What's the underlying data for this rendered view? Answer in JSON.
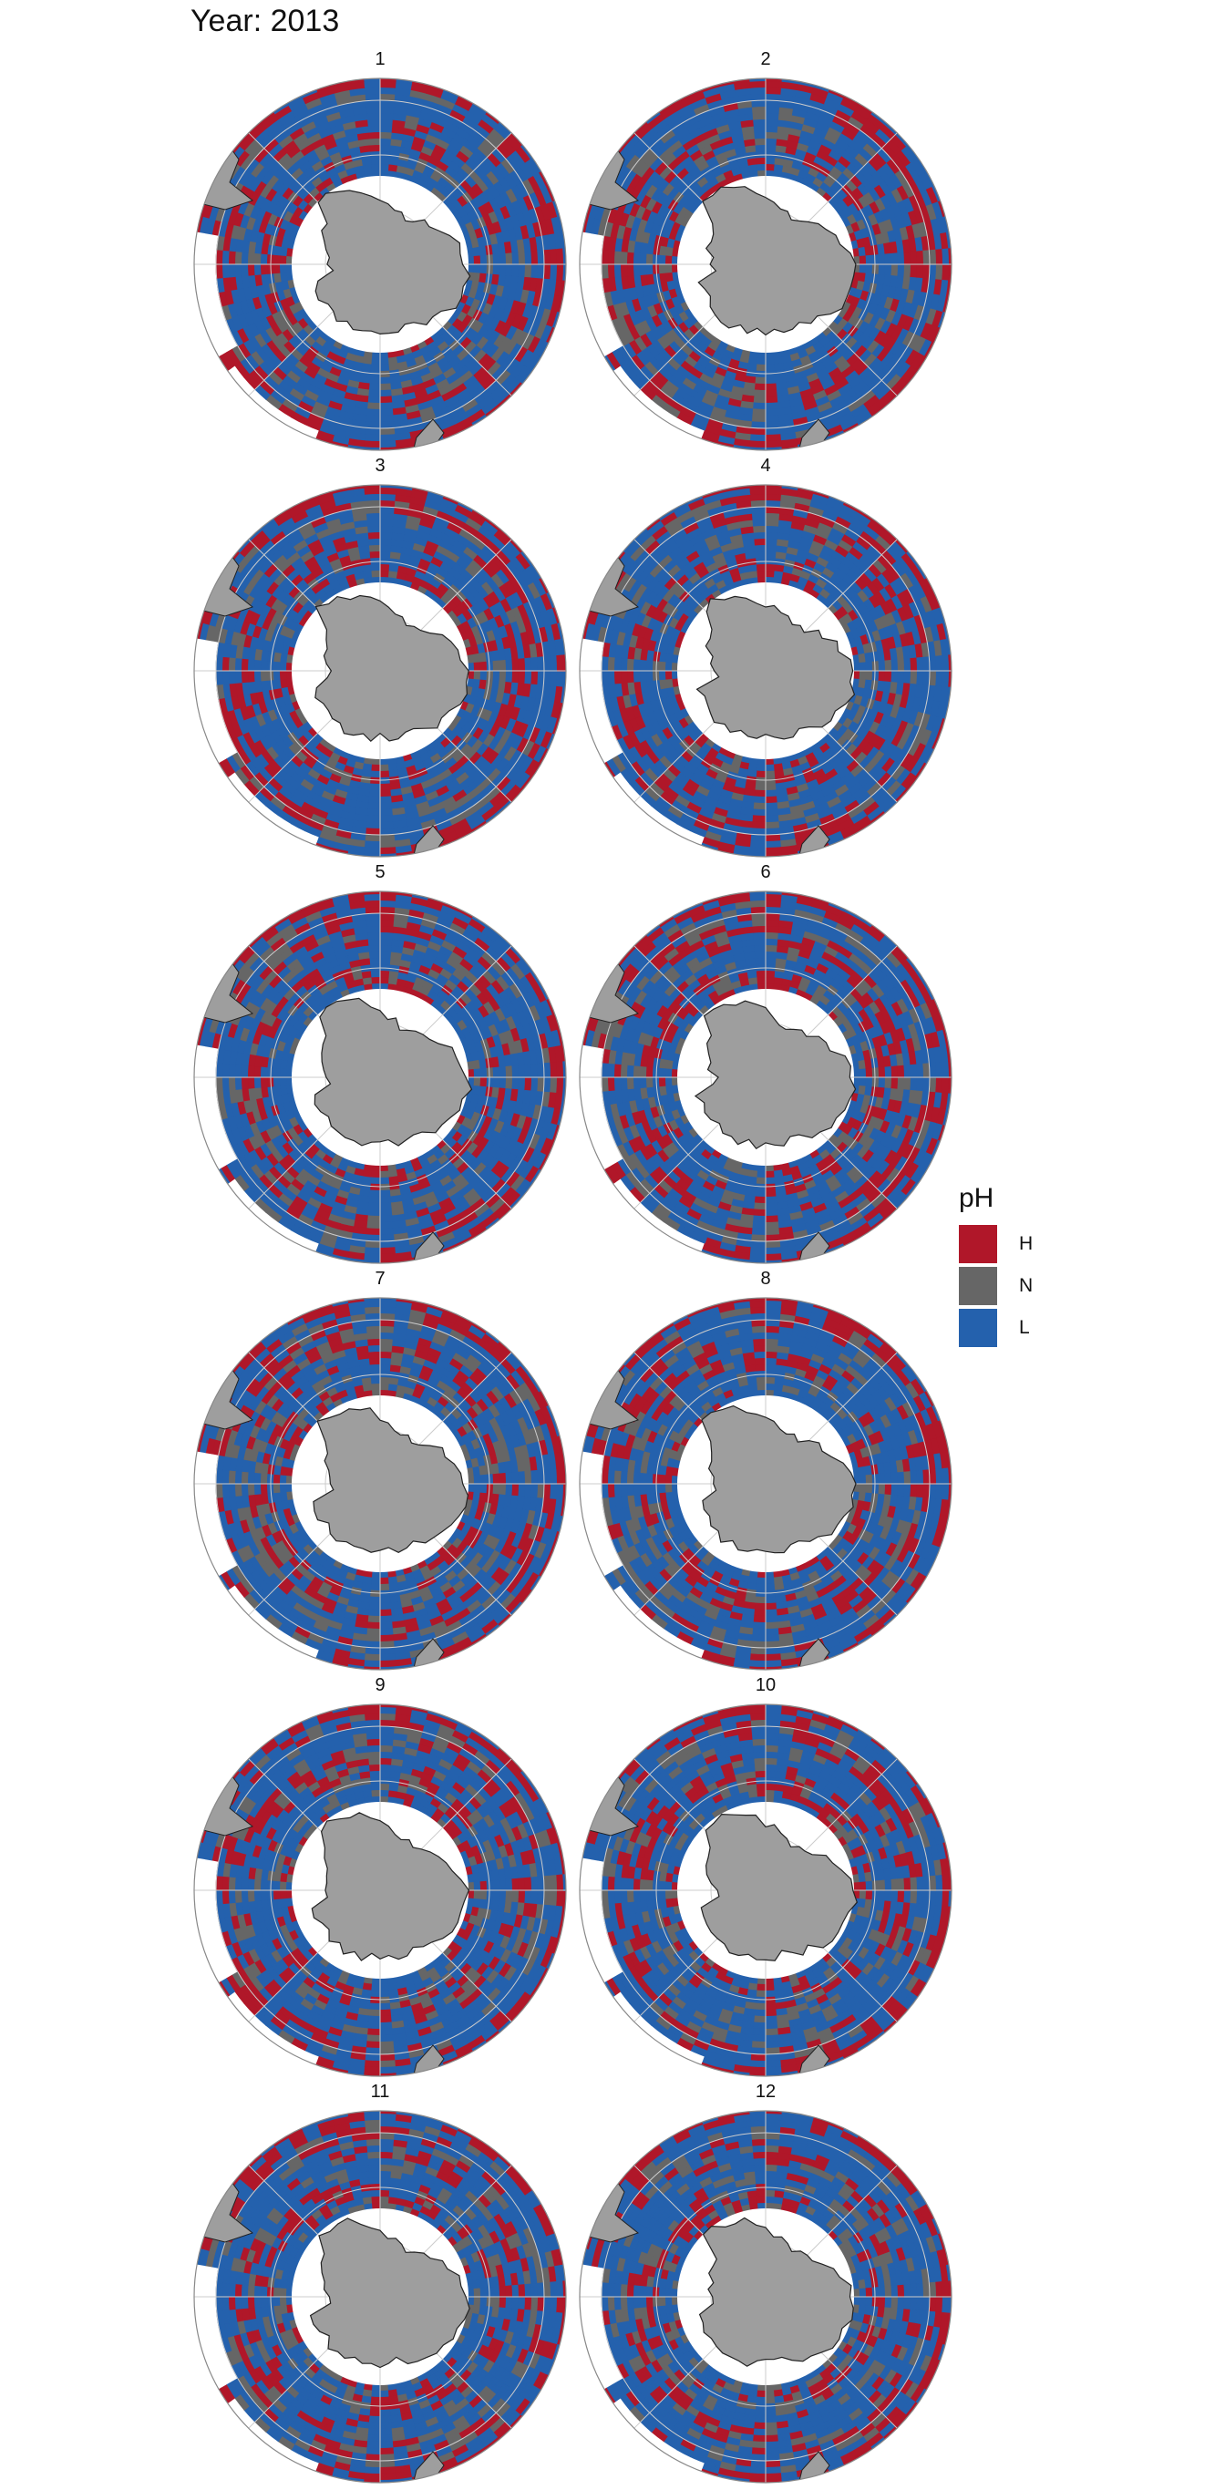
{
  "title": "Year: 2013",
  "panels": [
    "1",
    "2",
    "3",
    "4",
    "5",
    "6",
    "7",
    "8",
    "9",
    "10",
    "11",
    "12"
  ],
  "legend": {
    "title": "pH",
    "items": [
      {
        "label": "H",
        "color": "#b01729"
      },
      {
        "label": "N",
        "color": "#666666"
      },
      {
        "label": "L",
        "color": "#2461ad"
      }
    ]
  },
  "colors": {
    "high": "#b01729",
    "neutral": "#666666",
    "low": "#2461ad",
    "land": "#9e9e9e",
    "land_border": "#222222",
    "graticule": "#cccccc",
    "frame": "#888888"
  },
  "map": {
    "projection": "south-polar stereographic",
    "subject": "Southern Ocean pH class per grid cell, by month"
  }
}
